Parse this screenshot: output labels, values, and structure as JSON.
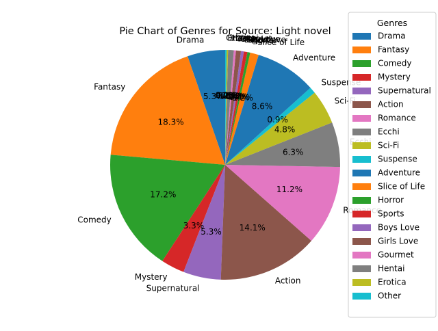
{
  "chart_data": {
    "type": "pie",
    "title": "Pie Chart of Genres for Source: Light novel",
    "start_angle_deg": 90,
    "direction": "counterclockwise",
    "autopct_format": "{:.1f}%",
    "legend": {
      "title": "Genres",
      "placement": "right"
    },
    "slices": [
      {
        "label": "Drama",
        "value": 5.3,
        "pct_label": "5.3%",
        "color": "#1f77b4"
      },
      {
        "label": "Fantasy",
        "value": 18.3,
        "pct_label": "18.3%",
        "color": "#ff7f0e"
      },
      {
        "label": "Comedy",
        "value": 17.2,
        "pct_label": "17.2%",
        "color": "#2ca02c"
      },
      {
        "label": "Mystery",
        "value": 3.3,
        "pct_label": "3.3%",
        "color": "#d62728"
      },
      {
        "label": "Supernatural",
        "value": 5.3,
        "pct_label": "5.3%",
        "color": "#9467bd"
      },
      {
        "label": "Action",
        "value": 14.1,
        "pct_label": "14.1%",
        "color": "#8c564b"
      },
      {
        "label": "Romance",
        "value": 11.2,
        "pct_label": "11.2%",
        "color": "#e377c2"
      },
      {
        "label": "Ecchi",
        "value": 6.3,
        "pct_label": "6.3%",
        "color": "#7f7f7f"
      },
      {
        "label": "Sci-Fi",
        "value": 4.8,
        "pct_label": "4.8%",
        "color": "#bcbd22"
      },
      {
        "label": "Suspense",
        "value": 0.9,
        "pct_label": "0.9%",
        "color": "#17becf"
      },
      {
        "label": "Adventure",
        "value": 8.6,
        "pct_label": "8.6%",
        "color": "#1f77b4"
      },
      {
        "label": "Slice of Life",
        "value": 1.2,
        "pct_label": "1.2%",
        "color": "#ff7f0e"
      },
      {
        "label": "Horror",
        "value": 0.4,
        "pct_label": "0.4%",
        "color": "#2ca02c"
      },
      {
        "label": "Sports",
        "value": 0.5,
        "pct_label": "0.5%",
        "color": "#d62728"
      },
      {
        "label": "Boys Love",
        "value": 0.4,
        "pct_label": "0.4%",
        "color": "#9467bd"
      },
      {
        "label": "Girls Love",
        "value": 0.7,
        "pct_label": "0.7%",
        "color": "#8c564b"
      },
      {
        "label": "Gourmet",
        "value": 0.3,
        "pct_label": "0.3%",
        "color": "#e377c2"
      },
      {
        "label": "Hentai",
        "value": 0.8,
        "pct_label": "0.8%",
        "color": "#7f7f7f"
      },
      {
        "label": "Erotica",
        "value": 0.2,
        "pct_label": "0.2%",
        "color": "#bcbd22"
      },
      {
        "label": "Other",
        "value": 0.2,
        "pct_label": "0.2%",
        "color": "#17becf"
      }
    ]
  }
}
